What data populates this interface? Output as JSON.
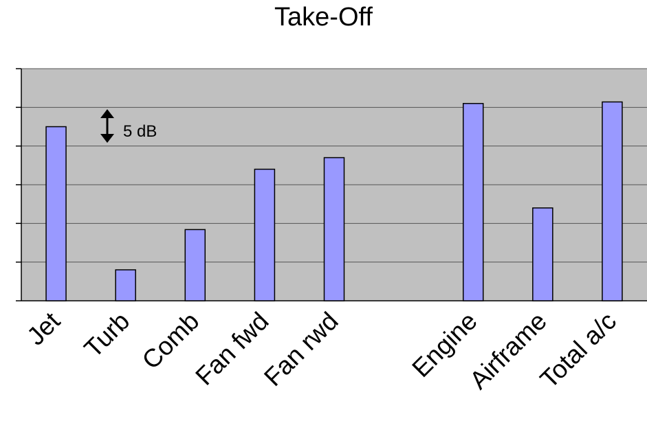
{
  "chart_data": {
    "type": "bar",
    "title": "Take-Off",
    "xlabel": "",
    "ylabel": "",
    "categories": [
      "Jet",
      "Turb",
      "Comb",
      "Fan fwd",
      "Fan rwd",
      "",
      "Engine",
      "Airframe",
      "Total a/c"
    ],
    "values": [
      22.5,
      4.0,
      9.2,
      17.0,
      18.5,
      null,
      25.5,
      12.0,
      25.7
    ],
    "ylim": [
      0,
      30
    ],
    "grid": true,
    "y_tick_labels_shown": false,
    "scale_annotation": "5 dB",
    "bar_color": "#9999ff",
    "plot_background": "#c0c0c0"
  }
}
